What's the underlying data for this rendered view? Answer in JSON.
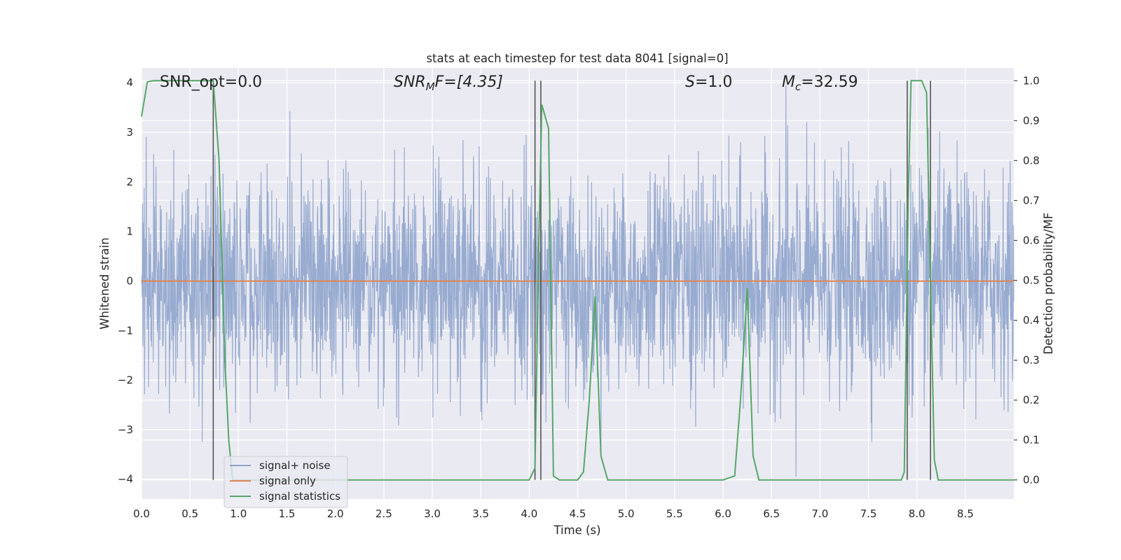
{
  "chart_data": {
    "type": "line",
    "title": "stats at each timestep for test data 8041 [signal=0]",
    "xlabel": "Time (s)",
    "ylabel": "Whitened strain",
    "y2label": "Detection probability/MF",
    "xlim": [
      0,
      9.0
    ],
    "ylim": [
      -4.4,
      4.3
    ],
    "y2lim": [
      -0.048,
      1.032
    ],
    "x_ticks": [
      "0.0",
      "0.5",
      "1.0",
      "1.5",
      "2.0",
      "2.5",
      "3.0",
      "3.5",
      "4.0",
      "4.5",
      "5.0",
      "5.5",
      "6.0",
      "6.5",
      "7.0",
      "7.5",
      "8.0",
      "8.5"
    ],
    "y_ticks": [
      "−4",
      "−3",
      "−2",
      "−1",
      "0",
      "1",
      "2",
      "3",
      "4"
    ],
    "y2_ticks": [
      "0.0",
      "0.1",
      "0.2",
      "0.3",
      "0.4",
      "0.5",
      "0.6",
      "0.7",
      "0.8",
      "0.9",
      "1.0"
    ],
    "grid": true,
    "legend_position": "lower-left",
    "annotations": {
      "snr_opt": "SNR_opt=0.0",
      "snr_mf_sym": "SNR",
      "snr_mf_sub": "M",
      "snr_mf_rest": "F=[4.35]",
      "s_sym": "S",
      "s_rest": "=1.0",
      "mc_sym": "M",
      "mc_sub": "c",
      "mc_rest": "=32.59"
    },
    "series": [
      {
        "name": "signal+ noise",
        "color": "#8fa4cc",
        "kind": "noise",
        "envelope_typical": 1.5,
        "extremes": {
          "max": 3.95,
          "min": -3.95
        }
      },
      {
        "name": "signal only",
        "color": "#dd8452",
        "x": [
          0,
          9.0
        ],
        "y": [
          0,
          0
        ]
      },
      {
        "name": "signal statistics",
        "color": "#55a868",
        "axis": "right",
        "x": [
          0.0,
          0.06,
          0.12,
          0.2,
          0.3,
          0.4,
          0.5,
          0.6,
          0.68,
          0.74,
          0.8,
          0.86,
          0.9,
          0.94,
          1.0,
          2.0,
          3.0,
          4.0,
          4.06,
          4.1,
          4.13,
          4.2,
          4.25,
          4.31,
          4.4,
          4.5,
          4.56,
          4.62,
          4.68,
          4.74,
          4.81,
          4.9,
          5.5,
          6.0,
          6.12,
          6.18,
          6.25,
          6.31,
          6.37,
          6.5,
          7.0,
          7.5,
          7.84,
          7.87,
          7.91,
          7.94,
          7.97,
          8.05,
          8.1,
          8.14,
          8.18,
          8.22,
          8.3,
          8.5,
          9.0
        ],
        "y": [
          0.91,
          0.997,
          1.0,
          1.0,
          1.0,
          1.0,
          1.0,
          1.0,
          1.0,
          1.0,
          0.8,
          0.3,
          0.1,
          0.0,
          0.0,
          0.0,
          0.0,
          0.0,
          0.03,
          0.6,
          0.94,
          0.88,
          0.01,
          0.0,
          0.0,
          0.0,
          0.02,
          0.2,
          0.46,
          0.06,
          0.0,
          0.0,
          0.0,
          0.0,
          0.01,
          0.2,
          0.48,
          0.06,
          0.0,
          0.0,
          0.0,
          0.0,
          0.0,
          0.02,
          0.7,
          1.0,
          1.0,
          1.0,
          0.97,
          0.5,
          0.05,
          0.0,
          0.0,
          0.0,
          0.0
        ]
      }
    ],
    "vertical_markers_x": [
      0.74,
      4.06,
      4.12,
      7.9,
      8.14
    ],
    "vertical_marker_color": "#555555",
    "colors": {
      "background": "#eaeaf2",
      "grid": "#ffffff"
    }
  }
}
